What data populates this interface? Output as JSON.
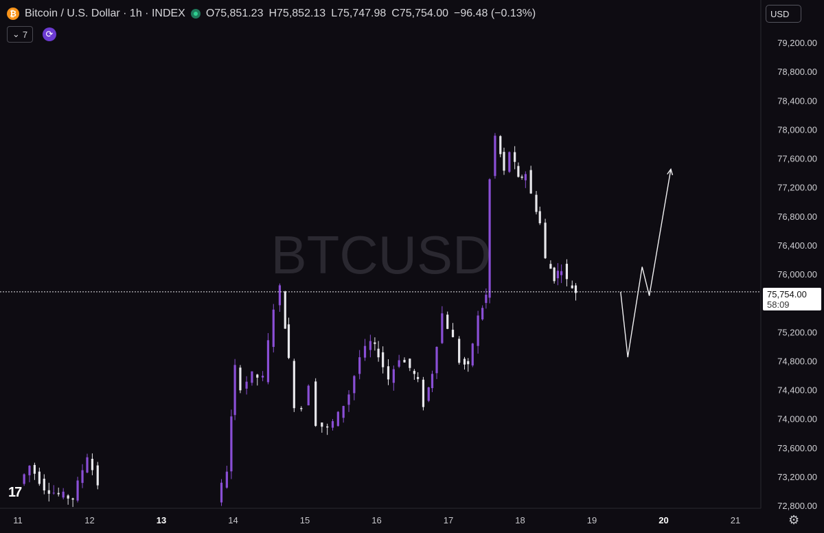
{
  "header": {
    "symbol_title": "Bitcoin / U.S. Dollar · 1h · INDEX",
    "btc_icon_glyph": "₿",
    "ohlc": {
      "open": "O75,851.23",
      "high": "H75,852.13",
      "low": "L75,747.98",
      "close": "C75,754.00",
      "change": "−96.48 (−0.13%)"
    },
    "indicator_count": "7"
  },
  "currency_selector": {
    "value": "USD",
    "options": [
      "USD"
    ]
  },
  "watermark": "BTCUSD",
  "logo_text": "17",
  "last_price": {
    "value": "75,754.00",
    "countdown": "58:09",
    "numeric": 75754
  },
  "colors": {
    "background": "#0e0c12",
    "up": "#8a4fd6",
    "down": "#e8e8ec",
    "text": "#d0d0d4"
  },
  "chart_data": {
    "type": "candlestick",
    "x_tick_labels": [
      "11",
      "12",
      "13",
      "14",
      "15",
      "16",
      "17",
      "18",
      "19",
      "20",
      "21"
    ],
    "y_tick_labels": [
      "72,800.00",
      "73,200.00",
      "73,600.00",
      "74,000.00",
      "74,400.00",
      "74,800.00",
      "75,200.00",
      "76,000.00",
      "76,400.00",
      "76,800.00",
      "77,200.00",
      "77,600.00",
      "78,000.00",
      "78,400.00",
      "78,800.00",
      "79,200.00"
    ],
    "y_values": [
      72800,
      73200,
      73600,
      74000,
      74400,
      74800,
      75200,
      76000,
      76400,
      76800,
      77200,
      77600,
      78000,
      78400,
      78800,
      79200
    ],
    "y_range": [
      72750,
      79350
    ],
    "x_day_range": [
      11,
      21
    ],
    "last_close": 75754,
    "candle_closes": [
      [
        11.05,
        73100
      ],
      [
        11.2,
        73350
      ],
      [
        11.4,
        73050
      ],
      [
        11.6,
        72950
      ],
      [
        11.8,
        72900
      ],
      [
        12.0,
        73500
      ],
      [
        12.15,
        73100
      ],
      [
        13.8,
        72850
      ],
      [
        13.95,
        73300
      ],
      [
        14.05,
        74700
      ],
      [
        14.15,
        74450
      ],
      [
        14.3,
        74600
      ],
      [
        14.45,
        74550
      ],
      [
        14.6,
        75550
      ],
      [
        14.7,
        75800
      ],
      [
        14.8,
        74800
      ],
      [
        14.9,
        74200
      ],
      [
        15.0,
        74150
      ],
      [
        15.1,
        74500
      ],
      [
        15.2,
        73950
      ],
      [
        15.35,
        73850
      ],
      [
        15.5,
        74050
      ],
      [
        15.65,
        74350
      ],
      [
        15.8,
        74850
      ],
      [
        15.95,
        75050
      ],
      [
        16.05,
        74900
      ],
      [
        16.2,
        74550
      ],
      [
        16.35,
        74850
      ],
      [
        16.5,
        74700
      ],
      [
        16.6,
        74500
      ],
      [
        16.7,
        74200
      ],
      [
        16.8,
        74650
      ],
      [
        16.95,
        75450
      ],
      [
        17.1,
        75100
      ],
      [
        17.2,
        74800
      ],
      [
        17.3,
        74700
      ],
      [
        17.45,
        75400
      ],
      [
        17.55,
        75700
      ],
      [
        17.6,
        77300
      ],
      [
        17.7,
        77900
      ],
      [
        17.8,
        77400
      ],
      [
        17.9,
        77700
      ],
      [
        18.0,
        77300
      ],
      [
        18.1,
        77400
      ],
      [
        18.2,
        77100
      ],
      [
        18.3,
        76700
      ],
      [
        18.4,
        76200
      ],
      [
        18.5,
        75950
      ],
      [
        18.6,
        76100
      ],
      [
        18.7,
        75900
      ],
      [
        18.8,
        75754
      ]
    ],
    "projection_path": [
      [
        19.4,
        75754
      ],
      [
        19.5,
        74850
      ],
      [
        19.7,
        76100
      ],
      [
        19.8,
        75700
      ],
      [
        20.1,
        77450
      ]
    ],
    "price_tag_value": "75,754.00"
  }
}
